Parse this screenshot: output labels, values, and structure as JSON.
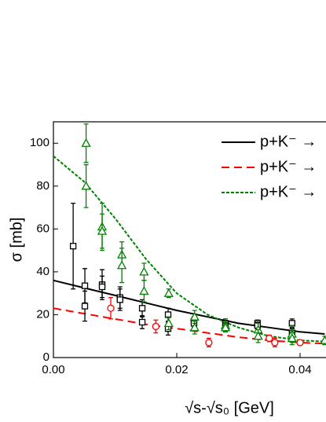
{
  "chart_data": {
    "type": "line",
    "xlabel": "√s-√s₀ [GeV]",
    "ylabel": "σ [mb]",
    "xlim": [
      0,
      0.0442
    ],
    "ylim": [
      0,
      110
    ],
    "xticks": [
      {
        "value": 0,
        "label": "0.00"
      },
      0.02,
      0.04
    ],
    "yticks": [
      0,
      20,
      40,
      60,
      80,
      100
    ],
    "legend": "top-right",
    "series": [
      {
        "name": "p+K⁻ →",
        "color": "#000000",
        "dash": "solid",
        "x": [
          0,
          0.005,
          0.01,
          0.015,
          0.02,
          0.025,
          0.03,
          0.035,
          0.04,
          0.044
        ],
        "values": [
          36,
          32.5,
          29,
          25.5,
          22,
          19,
          16,
          14,
          12,
          11
        ]
      },
      {
        "name": "p+K⁻ →",
        "color": "#ff0000",
        "dash": "dashed",
        "x": [
          0,
          0.005,
          0.01,
          0.015,
          0.02,
          0.025,
          0.03,
          0.035,
          0.04,
          0.044
        ],
        "values": [
          23,
          20.5,
          18,
          15.5,
          13.5,
          11.5,
          9.5,
          8,
          7,
          6.5
        ]
      },
      {
        "name": "p+K⁻ →",
        "color": "#008000",
        "dash": "dotted",
        "x": [
          0,
          0.005,
          0.01,
          0.015,
          0.02,
          0.025,
          0.03,
          0.035,
          0.04,
          0.044
        ],
        "values": [
          94,
          82,
          65,
          46,
          30,
          20,
          14,
          10,
          8,
          7.5
        ]
      }
    ],
    "points": [
      {
        "color": "#000000",
        "marker": "square",
        "x": [
          0.0032,
          0.0051,
          0.0051,
          0.0079,
          0.0079,
          0.0108,
          0.0108,
          0.0144,
          0.0144,
          0.0186,
          0.0186,
          0.0228,
          0.0228,
          0.0279,
          0.0279,
          0.0331,
          0.0331,
          0.0387,
          0.0387
        ],
        "values": [
          52,
          33.5,
          24,
          34,
          33,
          28,
          27,
          23,
          16.5,
          20,
          13.5,
          17,
          16,
          16,
          15,
          16,
          15,
          16,
          11.5
        ],
        "errors": [
          20,
          8,
          7,
          7,
          5,
          5,
          5,
          4,
          3,
          3,
          3,
          2,
          2,
          2,
          2,
          1.5,
          1.5,
          2,
          2
        ]
      },
      {
        "color": "#ff0000",
        "marker": "circle",
        "x": [
          0.0093,
          0.0166,
          0.0252,
          0.035,
          0.0359,
          0.04
        ],
        "values": [
          23,
          14.5,
          7,
          9,
          7,
          7
        ],
        "errors": [
          5,
          3,
          2,
          1.5,
          2,
          1
        ]
      },
      {
        "color": "#008000",
        "marker": "triangle",
        "x": [
          0.0053,
          0.0053,
          0.0079,
          0.0079,
          0.0111,
          0.0111,
          0.0147,
          0.0147,
          0.0187,
          0.0187,
          0.0229,
          0.0229,
          0.0279,
          0.0279,
          0.0332,
          0.0332,
          0.0387,
          0.0387,
          0.044
        ],
        "values": [
          100,
          80,
          61,
          59,
          48,
          43,
          40,
          31,
          30,
          16,
          19,
          14,
          15,
          14,
          13,
          10,
          11,
          9,
          8
        ],
        "errors": [
          9,
          10,
          11,
          8,
          6,
          8,
          4,
          5,
          2,
          3,
          3,
          3,
          3,
          2,
          3,
          3,
          4,
          3,
          2
        ]
      }
    ]
  }
}
